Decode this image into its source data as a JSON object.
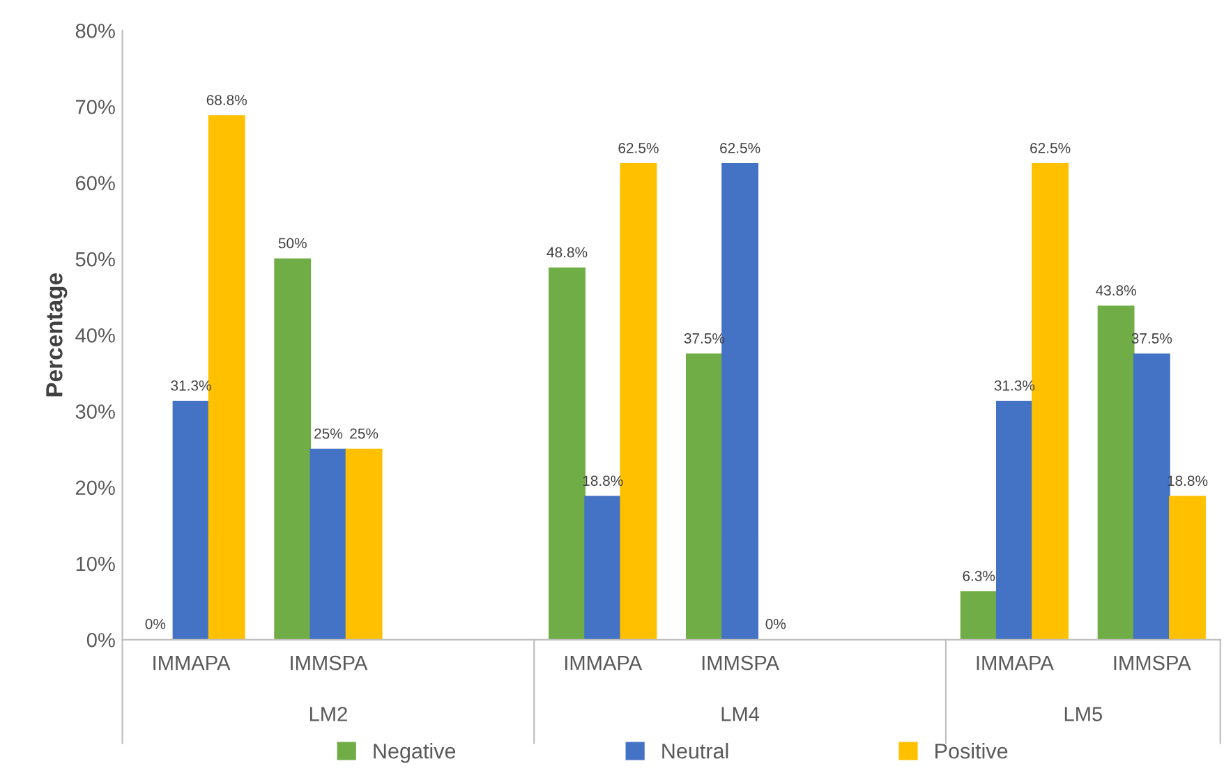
{
  "chart_data": {
    "type": "bar",
    "ylabel": "Percentage",
    "categories": [
      "IMMAPA",
      "IMMSPA",
      null,
      "IMMAPA",
      "IMMSPA",
      null,
      "IMMAPA",
      "IMMSPA"
    ],
    "annotations": [
      "LM2",
      "LM4",
      "LM5"
    ],
    "series": [
      {
        "name": "Negative",
        "color": "#70ad47",
        "values": [
          0,
          50,
          null,
          48.8,
          37.5,
          null,
          6.3,
          43.8
        ],
        "value_labels": [
          "0%",
          "50%",
          null,
          "48.8%",
          "37.5%",
          null,
          "6.3%",
          "43.8%"
        ]
      },
      {
        "name": "Neutral",
        "color": "#4472c4",
        "values": [
          31.3,
          25,
          null,
          18.8,
          62.5,
          null,
          31.3,
          37.5
        ],
        "value_labels": [
          "31.3%",
          "25%",
          null,
          "18.8%",
          "62.5%",
          null,
          "31.3%",
          "37.5%"
        ]
      },
      {
        "name": "Positive",
        "color": "#ffc000",
        "values": [
          68.8,
          25,
          null,
          62.5,
          0,
          null,
          62.5,
          18.8
        ],
        "value_labels": [
          "68.8%",
          "25%",
          null,
          "62.5%",
          "0%",
          null,
          "62.5%",
          "18.8%"
        ]
      }
    ],
    "ylim": [
      0,
      80
    ],
    "yticks": [
      {
        "value": 0,
        "label": "0%"
      },
      {
        "value": 10,
        "label": "10%"
      },
      {
        "value": 20,
        "label": "20%"
      },
      {
        "value": 30,
        "label": "30%"
      },
      {
        "value": 40,
        "label": "40%"
      },
      {
        "value": 50,
        "label": "50%"
      },
      {
        "value": 60,
        "label": "60%"
      },
      {
        "value": 70,
        "label": "70%"
      },
      {
        "value": 80,
        "label": "80%"
      }
    ],
    "grid": false,
    "legend": "bottom"
  }
}
